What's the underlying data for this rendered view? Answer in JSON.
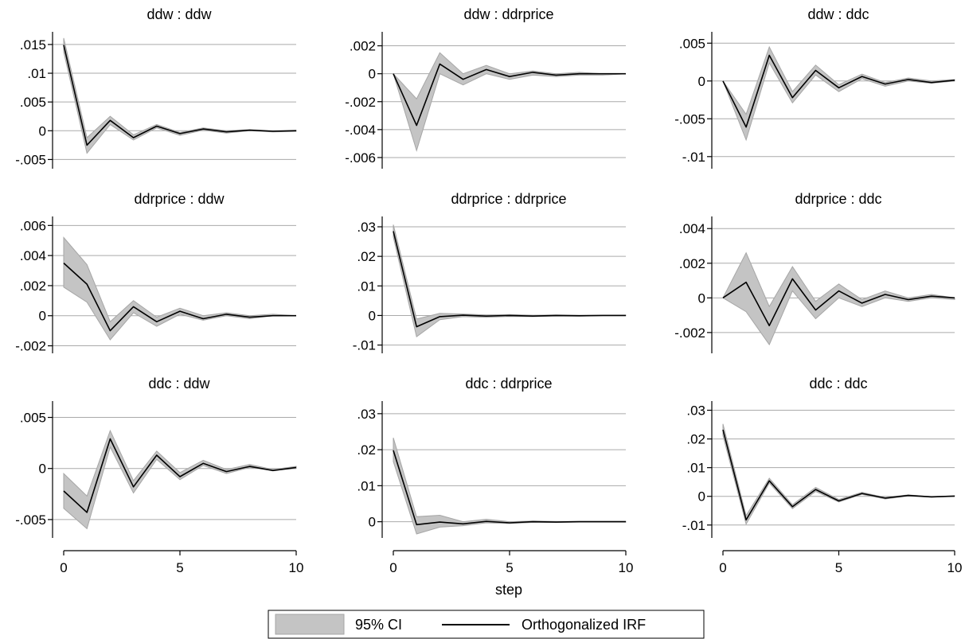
{
  "chart_data": {
    "type": "line",
    "panels": [
      {
        "title": "ddw : ddw",
        "x": [
          0,
          1,
          2,
          3,
          4,
          5,
          6,
          7,
          8,
          9,
          10
        ],
        "irf": [
          0.0149,
          -0.0025,
          0.0018,
          -0.0012,
          0.0008,
          -0.0005,
          0.0003,
          -0.0002,
          0.0001,
          -0.0001,
          0.0
        ],
        "lower": [
          0.0137,
          -0.0039,
          0.0011,
          -0.0016,
          0.0005,
          -0.0008,
          0.0001,
          -0.0004,
          0.0,
          -0.0002,
          -0.0001
        ],
        "upper": [
          0.0161,
          -0.0012,
          0.0025,
          -0.0007,
          0.0011,
          -0.0003,
          0.0005,
          0.0,
          0.0002,
          0.0,
          0.0001
        ],
        "yticks": [
          ".015",
          ".01",
          ".005",
          "0",
          "-.005"
        ],
        "ytick_values": [
          0.015,
          0.01,
          0.005,
          0,
          -0.005
        ]
      },
      {
        "title": "ddw : ddrprice",
        "x": [
          0,
          1,
          2,
          3,
          4,
          5,
          6,
          7,
          8,
          9,
          10
        ],
        "irf": [
          0.0,
          -0.0037,
          0.0007,
          -0.0004,
          0.0003,
          -0.0002,
          0.0001,
          -0.0001,
          0.0,
          0.0,
          0.0
        ],
        "lower": [
          0.0,
          -0.0055,
          0.0,
          -0.0008,
          0.0,
          -0.0004,
          -0.0001,
          -0.0002,
          -0.0001,
          -0.0001,
          0.0
        ],
        "upper": [
          0.0,
          -0.0018,
          0.0015,
          0.0,
          0.0006,
          0.0,
          0.0002,
          0.0,
          0.0001,
          0.0,
          0.0
        ],
        "yticks": [
          ".002",
          "0",
          "-.002",
          "-.004",
          "-.006"
        ],
        "ytick_values": [
          0.002,
          0,
          -0.002,
          -0.004,
          -0.006
        ]
      },
      {
        "title": "ddw : ddc",
        "x": [
          0,
          1,
          2,
          3,
          4,
          5,
          6,
          7,
          8,
          9,
          10
        ],
        "irf": [
          0.0,
          -0.0061,
          0.0034,
          -0.0022,
          0.0014,
          -0.0009,
          0.0006,
          -0.0004,
          0.0002,
          -0.0002,
          0.0001
        ],
        "lower": [
          0.0,
          -0.0078,
          0.0024,
          -0.0029,
          0.0008,
          -0.0014,
          0.0003,
          -0.0007,
          0.0,
          -0.0003,
          0.0
        ],
        "upper": [
          0.0,
          -0.0044,
          0.0045,
          -0.0014,
          0.0021,
          -0.0005,
          0.0009,
          -0.0002,
          0.0004,
          0.0,
          0.0002
        ],
        "yticks": [
          ".005",
          "0",
          "-.005",
          "-.01"
        ],
        "ytick_values": [
          0.005,
          0,
          -0.005,
          -0.01
        ]
      },
      {
        "title": "ddrprice : ddw",
        "x": [
          0,
          1,
          2,
          3,
          4,
          5,
          6,
          7,
          8,
          9,
          10
        ],
        "irf": [
          0.0035,
          0.0021,
          -0.001,
          0.0006,
          -0.0004,
          0.0003,
          -0.0002,
          0.0001,
          -0.0001,
          0.0,
          0.0
        ],
        "lower": [
          0.0019,
          0.0009,
          -0.0016,
          0.0002,
          -0.0007,
          0.0001,
          -0.0003,
          0.0,
          -0.0002,
          0.0,
          0.0
        ],
        "upper": [
          0.0052,
          0.0034,
          -0.0004,
          0.001,
          -0.0001,
          0.0005,
          0.0,
          0.0002,
          0.0,
          0.0001,
          0.0
        ],
        "yticks": [
          ".006",
          ".004",
          ".002",
          "0",
          "-.002"
        ],
        "ytick_values": [
          0.006,
          0.004,
          0.002,
          0,
          -0.002
        ]
      },
      {
        "title": "ddrprice : ddrprice",
        "x": [
          0,
          1,
          2,
          3,
          4,
          5,
          6,
          7,
          8,
          9,
          10
        ],
        "irf": [
          0.0285,
          -0.0038,
          -0.0004,
          0.0001,
          -0.0002,
          0.0,
          -0.0002,
          0.0,
          -0.0001,
          0.0,
          0.0
        ],
        "lower": [
          0.0265,
          -0.0072,
          -0.0014,
          -0.0004,
          -0.0006,
          -0.0003,
          -0.0004,
          -0.0002,
          -0.0002,
          -0.0001,
          -0.0001
        ],
        "upper": [
          0.0307,
          -0.0012,
          0.0007,
          0.0005,
          0.0002,
          0.0003,
          0.0001,
          0.0002,
          0.0001,
          0.0001,
          0.0001
        ],
        "yticks": [
          ".03",
          ".02",
          ".01",
          "0",
          "-.01"
        ],
        "ytick_values": [
          0.03,
          0.02,
          0.01,
          0,
          -0.01
        ]
      },
      {
        "title": "ddrprice : ddc",
        "x": [
          0,
          1,
          2,
          3,
          4,
          5,
          6,
          7,
          8,
          9,
          10
        ],
        "irf": [
          0.0,
          0.0009,
          -0.0016,
          0.0011,
          -0.0007,
          0.0004,
          -0.0003,
          0.0002,
          -0.0001,
          0.0001,
          0.0
        ],
        "lower": [
          0.0,
          -0.0008,
          -0.0027,
          0.0004,
          -0.0012,
          0.0,
          -0.0005,
          0.0,
          -0.0002,
          0.0,
          -0.0001
        ],
        "upper": [
          0.0,
          0.0026,
          -0.0005,
          0.0018,
          -0.0002,
          0.0008,
          -0.0001,
          0.0004,
          0.0,
          0.0002,
          0.0
        ],
        "yticks": [
          ".004",
          ".002",
          "0",
          "-.002"
        ],
        "ytick_values": [
          0.004,
          0.002,
          0,
          -0.002
        ]
      },
      {
        "title": "ddc : ddw",
        "x": [
          0,
          1,
          2,
          3,
          4,
          5,
          6,
          7,
          8,
          9,
          10
        ],
        "irf": [
          -0.0022,
          -0.0043,
          0.0029,
          -0.0018,
          0.0013,
          -0.0008,
          0.0005,
          -0.0003,
          0.0002,
          -0.0002,
          0.0001
        ],
        "lower": [
          -0.0039,
          -0.0059,
          0.0021,
          -0.0024,
          0.0009,
          -0.0011,
          0.0003,
          -0.0005,
          0.0001,
          -0.0002,
          0.0
        ],
        "upper": [
          -0.0005,
          -0.0027,
          0.0037,
          -0.0012,
          0.0017,
          -0.0004,
          0.0008,
          -0.0001,
          0.0004,
          -0.0001,
          0.0002
        ],
        "yticks": [
          ".005",
          "0",
          "-.005"
        ],
        "ytick_values": [
          0.005,
          0,
          -0.005
        ]
      },
      {
        "title": "ddc : ddrprice",
        "x": [
          0,
          1,
          2,
          3,
          4,
          5,
          6,
          7,
          8,
          9,
          10
        ],
        "irf": [
          0.0198,
          -0.0008,
          -0.0001,
          -0.0006,
          0.0001,
          -0.0003,
          0.0,
          -0.0001,
          0.0,
          0.0,
          0.0
        ],
        "lower": [
          0.0167,
          -0.0034,
          -0.0015,
          -0.0011,
          -0.0003,
          -0.0005,
          -0.0002,
          -0.0002,
          -0.0001,
          -0.0001,
          -0.0001
        ],
        "upper": [
          0.0233,
          0.0014,
          0.0018,
          0.0,
          0.0007,
          0.0,
          0.0002,
          0.0001,
          0.0001,
          0.0001,
          0.0001
        ],
        "yticks": [
          ".03",
          ".02",
          ".01",
          "0"
        ],
        "ytick_values": [
          0.03,
          0.02,
          0.01,
          0
        ]
      },
      {
        "title": "ddc : ddc",
        "x": [
          0,
          1,
          2,
          3,
          4,
          5,
          6,
          7,
          8,
          9,
          10
        ],
        "irf": [
          0.0232,
          -0.0082,
          0.0054,
          -0.0036,
          0.0024,
          -0.0016,
          0.001,
          -0.0006,
          0.0003,
          -0.0002,
          0.0001
        ],
        "lower": [
          0.0212,
          -0.0097,
          0.0046,
          -0.0043,
          0.0017,
          -0.002,
          0.0007,
          -0.0009,
          0.0001,
          -0.0003,
          0.0
        ],
        "upper": [
          0.0252,
          -0.0067,
          0.0063,
          -0.0029,
          0.0031,
          -0.0011,
          0.0014,
          -0.0004,
          0.0005,
          -0.0001,
          0.0002
        ],
        "yticks": [
          ".03",
          ".02",
          ".01",
          "0",
          "-.01"
        ],
        "ytick_values": [
          0.03,
          0.02,
          0.01,
          0,
          -0.01
        ]
      }
    ],
    "xticks": [
      "0",
      "5",
      "10"
    ],
    "xtick_values": [
      0,
      5,
      10
    ],
    "xlabel": "step",
    "legend": {
      "items": [
        "95% CI",
        "Orthogonalized IRF"
      ],
      "position": "bottom"
    },
    "colors": {
      "ci": "#c4c4c4",
      "ci_edge": "#a6a6a6",
      "line": "#000000",
      "grid": "#aaaaaa"
    },
    "grid": true
  }
}
